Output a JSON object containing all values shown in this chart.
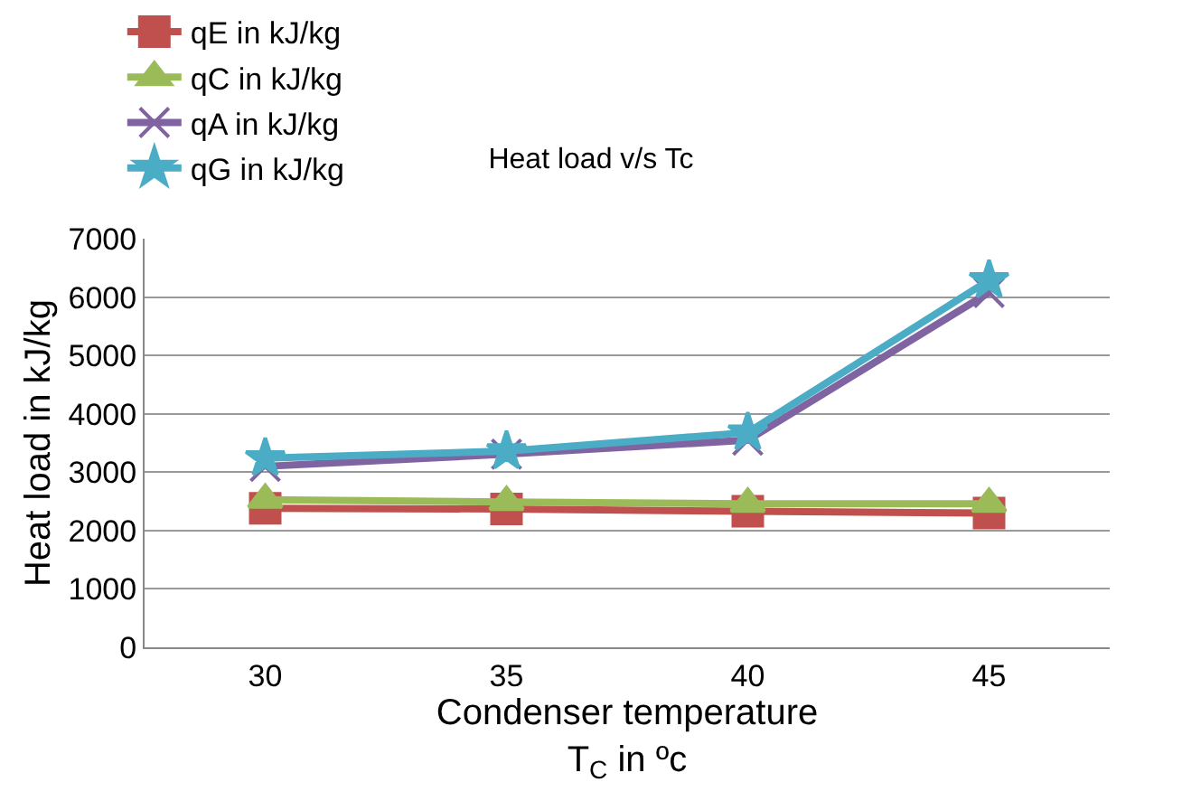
{
  "chart_data": {
    "type": "line",
    "title": "Heat load v/s Tc",
    "xlabel": "Condenser temperature\nT$_{C}$ in ºc",
    "ylabel": "Heat load in kJ/kg",
    "categories": [
      "30",
      "35",
      "40",
      "45"
    ],
    "series": [
      {
        "name": "qE in kJ/kg",
        "color": "#c0504d",
        "marker": "square",
        "values": [
          2380,
          2370,
          2330,
          2300
        ]
      },
      {
        "name": "qC in kJ/kg",
        "color": "#9bbb59",
        "marker": "triangle",
        "values": [
          2530,
          2490,
          2460,
          2460
        ]
      },
      {
        "name": "qA in kJ/kg",
        "color": "#8064a2",
        "marker": "cross",
        "values": [
          3100,
          3310,
          3550,
          6080
        ]
      },
      {
        "name": "qG in kJ/kg",
        "color": "#4bacc6",
        "marker": "star",
        "values": [
          3240,
          3360,
          3680,
          6290
        ]
      }
    ],
    "ylim": [
      0,
      7000
    ],
    "yticks": [
      0,
      1000,
      2000,
      3000,
      4000,
      5000,
      6000,
      7000
    ],
    "grid": "y",
    "legend": "top"
  }
}
